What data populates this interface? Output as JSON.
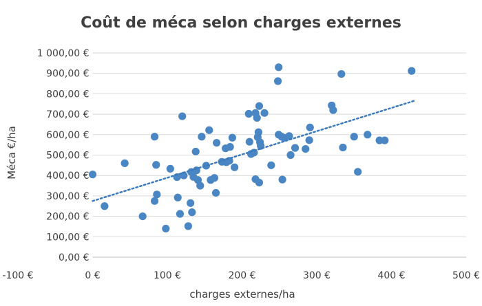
{
  "chart_data": {
    "type": "scatter",
    "title": "Coût de méca selon charges externes",
    "xlabel": "charges externes/ha",
    "ylabel": "Méca €/ha",
    "xlim": [
      -100,
      500
    ],
    "ylim": [
      0,
      1000
    ],
    "x_ticks": [
      -100,
      0,
      100,
      200,
      300,
      400,
      500
    ],
    "x_tick_labels": [
      "-100 €",
      "0 €",
      "100 €",
      "200 €",
      "300 €",
      "400 €",
      "500 €"
    ],
    "y_ticks": [
      0,
      100,
      200,
      300,
      400,
      500,
      600,
      700,
      800,
      900,
      1000
    ],
    "y_tick_labels": [
      "0,00 €",
      "100,00 €",
      "200,00 €",
      "300,00 €",
      "400,00 €",
      "500,00 €",
      "600,00 €",
      "700,00 €",
      "800,00 €",
      "900,00 €",
      "1 000,00 €"
    ],
    "grid": "horizontal",
    "legend": "none",
    "marker_color": "#4a86c4",
    "trendline": {
      "type": "linear",
      "style": "dotted",
      "color": "#3c7abd",
      "from": [
        0,
        275
      ],
      "to": [
        430,
        765
      ]
    },
    "points": [
      [
        0,
        405
      ],
      [
        16,
        250
      ],
      [
        43,
        460
      ],
      [
        67,
        200
      ],
      [
        83,
        590
      ],
      [
        83,
        275
      ],
      [
        85,
        452
      ],
      [
        86,
        307
      ],
      [
        98,
        140
      ],
      [
        104,
        433
      ],
      [
        113,
        392
      ],
      [
        114,
        292
      ],
      [
        117,
        212
      ],
      [
        120,
        690
      ],
      [
        122,
        400
      ],
      [
        128,
        152
      ],
      [
        131,
        265
      ],
      [
        132,
        417
      ],
      [
        133,
        220
      ],
      [
        135,
        393
      ],
      [
        138,
        517
      ],
      [
        139,
        425
      ],
      [
        141,
        378
      ],
      [
        144,
        350
      ],
      [
        146,
        590
      ],
      [
        152,
        448
      ],
      [
        156,
        622
      ],
      [
        158,
        378
      ],
      [
        163,
        388
      ],
      [
        165,
        315
      ],
      [
        166,
        560
      ],
      [
        173,
        467
      ],
      [
        178,
        533
      ],
      [
        179,
        465
      ],
      [
        183,
        472
      ],
      [
        184,
        540
      ],
      [
        187,
        585
      ],
      [
        190,
        440
      ],
      [
        209,
        702
      ],
      [
        210,
        565
      ],
      [
        212,
        505
      ],
      [
        216,
        512
      ],
      [
        218,
        382
      ],
      [
        218,
        706
      ],
      [
        220,
        682
      ],
      [
        221,
        588
      ],
      [
        222,
        612
      ],
      [
        223,
        740
      ],
      [
        223,
        365
      ],
      [
        224,
        563
      ],
      [
        225,
        545
      ],
      [
        230,
        706
      ],
      [
        239,
        450
      ],
      [
        248,
        862
      ],
      [
        249,
        930
      ],
      [
        249,
        600
      ],
      [
        253,
        590
      ],
      [
        254,
        380
      ],
      [
        256,
        585
      ],
      [
        263,
        593
      ],
      [
        265,
        500
      ],
      [
        271,
        535
      ],
      [
        285,
        530
      ],
      [
        290,
        573
      ],
      [
        291,
        635
      ],
      [
        320,
        743
      ],
      [
        322,
        720
      ],
      [
        333,
        897
      ],
      [
        335,
        537
      ],
      [
        350,
        590
      ],
      [
        355,
        418
      ],
      [
        368,
        600
      ],
      [
        384,
        572
      ],
      [
        391,
        572
      ],
      [
        427,
        912
      ]
    ]
  }
}
